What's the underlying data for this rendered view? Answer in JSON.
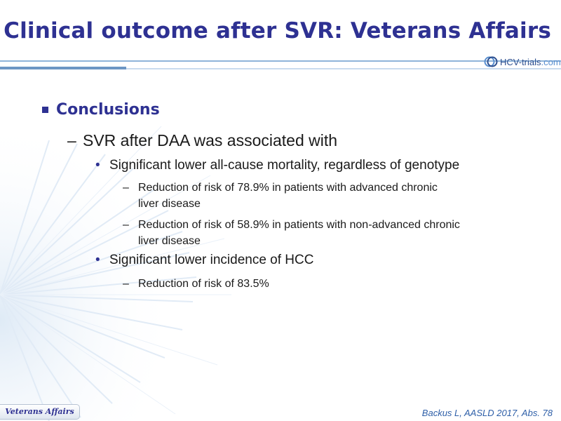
{
  "title": "Clinical outcome after SVR: Veterans Affairs",
  "logo": {
    "name": "HCV-trials",
    "domain": ".com"
  },
  "content": {
    "heading": "Conclusions",
    "level2": "SVR after DAA was associated with",
    "bullet1": "Significant lower all-cause mortality, regardless of genotype",
    "sub1_line1": "Reduction of risk of 78.9% in patients with advanced chronic",
    "sub1_line2": "liver disease",
    "sub2_line1": "Reduction of risk of 58.9% in patients with non-advanced chronic",
    "sub2_line2": "liver disease",
    "bullet2": "Significant lower incidence of HCC",
    "sub3": "Reduction of risk of 83.5%"
  },
  "footer": {
    "section_tab": "Veterans Affairs",
    "citation": "Backus L, AASLD 2017, Abs. 78"
  },
  "colors": {
    "title": "#2e3192",
    "citation": "#2e5fa8",
    "background_burst": "#d6e4f2"
  }
}
